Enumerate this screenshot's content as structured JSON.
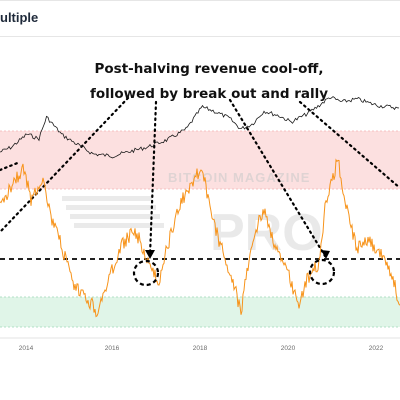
{
  "title": "ultiple",
  "annotation": {
    "line1": "Post-halving revenue cool-off,",
    "line2": "followed by break out and rally"
  },
  "watermark": {
    "brand": "BITCOIN MAGAZINE",
    "big": "PRO"
  },
  "colors": {
    "oscillator": "#f7931a",
    "price": "#1a1a1a",
    "upper_band": "#fbd5d5",
    "lower_band": "#d8f3e2",
    "dotted": "#000000"
  },
  "chart_data": {
    "type": "line",
    "title": "ultiple",
    "xlabel": "",
    "ylabel": "",
    "x_ticks": [
      "2014",
      "2016",
      "2018",
      "2020",
      "2022"
    ],
    "xlim": [
      2012.7,
      2023.0
    ],
    "bands": {
      "upper_zone": "red band (overheated)",
      "lower_zone": "green band (undervalued)"
    },
    "threshold_line": "dashed horizontal reference line",
    "series": [
      {
        "role": "price",
        "color": "#1a1a1a",
        "style": "thin line, log-scale price path",
        "x": [
          2012.7,
          2013.0,
          2013.4,
          2013.7,
          2013.9,
          2014.3,
          2014.8,
          2015.1,
          2015.6,
          2016.0,
          2016.5,
          2017.0,
          2017.5,
          2017.9,
          2018.2,
          2018.6,
          2018.9,
          2019.2,
          2019.5,
          2019.9,
          2020.2,
          2020.6,
          2020.9,
          2021.2,
          2021.5,
          2021.9,
          2022.2,
          2022.5,
          2022.8,
          2023.0
        ],
        "y_rel": [
          0.55,
          0.5,
          0.37,
          0.42,
          0.2,
          0.38,
          0.5,
          0.57,
          0.59,
          0.55,
          0.5,
          0.43,
          0.32,
          0.1,
          0.14,
          0.21,
          0.32,
          0.27,
          0.14,
          0.19,
          0.25,
          0.17,
          0.09,
          0.0,
          0.05,
          0.02,
          0.06,
          0.09,
          0.1,
          0.12
        ]
      },
      {
        "role": "oscillator",
        "color": "#f7931a",
        "style": "noisy line",
        "x": [
          2012.7,
          2013.0,
          2013.3,
          2013.5,
          2013.8,
          2014.0,
          2014.3,
          2014.6,
          2014.9,
          2015.2,
          2015.5,
          2015.8,
          2016.1,
          2016.3,
          2016.6,
          2016.8,
          2017.0,
          2017.3,
          2017.6,
          2017.9,
          2018.1,
          2018.4,
          2018.7,
          2018.9,
          2019.2,
          2019.5,
          2019.8,
          2020.1,
          2020.4,
          2020.6,
          2020.9,
          2021.1,
          2021.4,
          2021.7,
          2021.9,
          2022.1,
          2022.4,
          2022.7,
          2023.0
        ],
        "y_rel": [
          0.3,
          0.15,
          0.05,
          0.25,
          0.1,
          0.35,
          0.55,
          0.8,
          0.85,
          0.95,
          0.75,
          0.55,
          0.45,
          0.5,
          0.7,
          0.75,
          0.55,
          0.3,
          0.15,
          0.05,
          0.3,
          0.55,
          0.75,
          0.95,
          0.5,
          0.3,
          0.55,
          0.7,
          0.9,
          0.75,
          0.65,
          0.25,
          0.0,
          0.4,
          0.55,
          0.5,
          0.55,
          0.65,
          0.9
        ]
      }
    ],
    "highlights": [
      {
        "x": 2016.7,
        "label": "post-halving cool-off circle 1"
      },
      {
        "x": 2020.7,
        "label": "post-halving cool-off circle 2"
      }
    ]
  }
}
